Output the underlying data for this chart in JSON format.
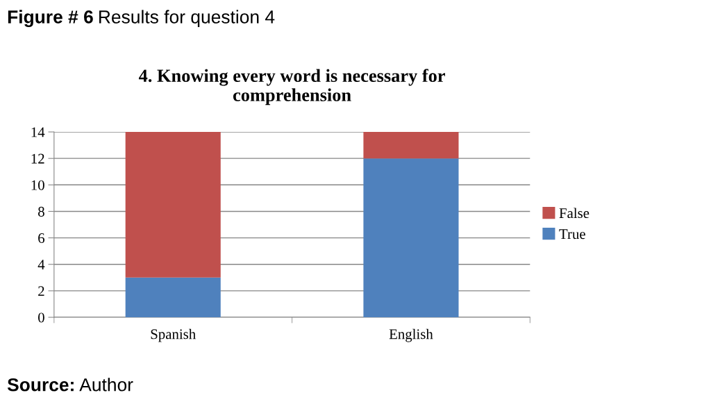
{
  "chart_data": {
    "type": "bar",
    "title": "4. Knowing every word is necessary for\ncomprehension",
    "categories": [
      "Spanish",
      "English"
    ],
    "series": [
      {
        "name": "True",
        "color": "#4f81bd",
        "values": [
          3,
          12
        ]
      },
      {
        "name": "False",
        "color": "#c0504d",
        "values": [
          11,
          2
        ]
      }
    ],
    "stacked": true,
    "ylim": [
      0,
      14
    ],
    "yticks": [
      0,
      2,
      4,
      6,
      8,
      10,
      12,
      14
    ],
    "grid": "y",
    "legend": "right",
    "annotations": [
      "Figure # 6",
      "Results for question 4",
      "Source:",
      "Author"
    ]
  }
}
